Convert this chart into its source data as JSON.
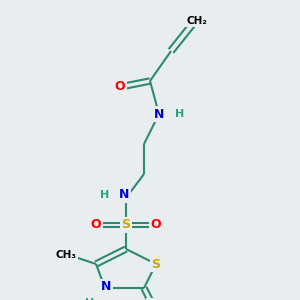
{
  "background_color": "#e8edf0",
  "atom_colors": {
    "O": "#ff0000",
    "N": "#0000cc",
    "S": "#ccaa00",
    "H": "#2aa080",
    "C": "#000000"
  },
  "bond_color": "#2d8a6e",
  "bond_width": 1.5,
  "figsize": [
    3.0,
    3.0
  ],
  "dpi": 100,
  "xlim": [
    0,
    10
  ],
  "ylim": [
    0,
    10
  ]
}
